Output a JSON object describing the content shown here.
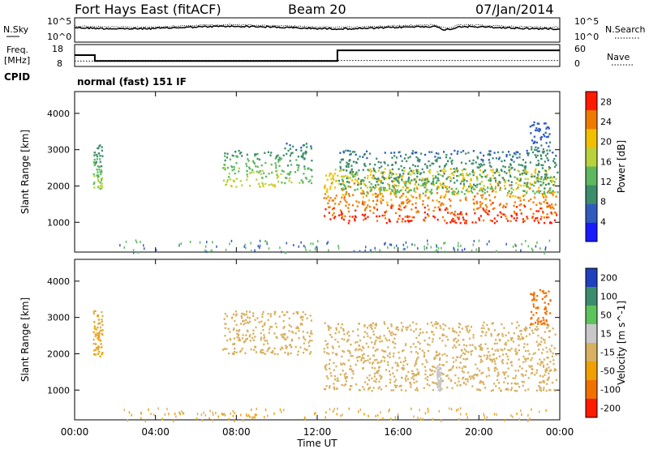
{
  "header": {
    "station": "Fort Hays East (fitACF)",
    "beam": "Beam 20",
    "date": "07/Jan/2014"
  },
  "strips": {
    "nsky_label": "N.Sky",
    "nsearch_label": "N.Search",
    "freq_label_line1": "Freq.",
    "freq_label_line2": "[MHz]",
    "nave_label": "Nave",
    "cpid_label": "CPID",
    "cpid_value": "normal (fast) 151 IF",
    "noise_ticks": [
      "10^5",
      "10^0"
    ],
    "freq_ticks": [
      "18",
      "8"
    ],
    "nave_ticks": [
      "60",
      "0"
    ],
    "freq_mhz": [
      [
        0,
        13.2
      ],
      [
        1.0,
        13.2
      ],
      [
        1.0,
        10.1
      ],
      [
        13.0,
        10.1
      ],
      [
        13.0,
        15.8
      ],
      [
        24,
        15.8
      ]
    ],
    "nave": [
      [
        0,
        12
      ],
      [
        1.0,
        12
      ],
      [
        1.0,
        14
      ],
      [
        24,
        14
      ]
    ]
  },
  "chart_data": [
    {
      "type": "heatmap",
      "title": "Fort Hays East (fitACF) Beam 20 07/Jan/2014",
      "ylabel": "Slant Range [km]",
      "xlabel": "",
      "x_ticks": [
        "00:00",
        "04:00",
        "08:00",
        "12:00",
        "16:00",
        "20:00",
        "00:00"
      ],
      "xlim_hours": [
        0,
        24
      ],
      "y_ticks": [
        1000,
        2000,
        3000,
        4000
      ],
      "ylim_km": [
        180,
        4600
      ],
      "colorbar_label": "Power [dB]",
      "colorbar_ticks": [
        4,
        8,
        12,
        16,
        20,
        24,
        28
      ],
      "colorbar_range": [
        0,
        30
      ],
      "colorbar_colors": [
        "#1a1aff",
        "#2f5bbf",
        "#3d8c6b",
        "#5eb85e",
        "#b8d23c",
        "#f0c000",
        "#f07a00",
        "#ff1a00"
      ],
      "regions": [
        {
          "hours": [
            0.9,
            1.35
          ],
          "range_km": [
            1950,
            3200
          ],
          "db": [
            6,
            18
          ]
        },
        {
          "hours": [
            7.3,
            10.2
          ],
          "range_km": [
            2000,
            3000
          ],
          "db": [
            8,
            20
          ]
        },
        {
          "hours": [
            10.2,
            11.7
          ],
          "range_km": [
            2100,
            3200
          ],
          "db": [
            6,
            16
          ]
        },
        {
          "hours": [
            12.3,
            23.8
          ],
          "range_km": [
            1000,
            2500
          ],
          "db": [
            16,
            30
          ]
        },
        {
          "hours": [
            13.0,
            23.9
          ],
          "range_km": [
            1800,
            3000
          ],
          "db": [
            6,
            14
          ]
        },
        {
          "hours": [
            22.5,
            23.5
          ],
          "range_km": [
            2800,
            3800
          ],
          "db": [
            4,
            10
          ]
        }
      ]
    },
    {
      "type": "heatmap",
      "ylabel": "Slant Range [km]",
      "xlabel": "Time UT",
      "x_ticks": [
        "00:00",
        "04:00",
        "08:00",
        "12:00",
        "16:00",
        "20:00",
        "00:00"
      ],
      "xlim_hours": [
        0,
        24
      ],
      "y_ticks": [
        1000,
        2000,
        3000,
        4000
      ],
      "ylim_km": [
        180,
        4600
      ],
      "colorbar_label": "Velocity [m s^-1]",
      "colorbar_ticks": [
        "200",
        "100",
        "50",
        "15",
        "-15",
        "-50",
        "-100",
        "-200"
      ],
      "colorbar_colors": [
        "#1f3fbf",
        "#3b8c6e",
        "#5cc45c",
        "#c8c8c8",
        "#d7b060",
        "#f0a000",
        "#f07000",
        "#ff1a00"
      ],
      "regions": [
        {
          "hours": [
            0.9,
            1.35
          ],
          "range_km": [
            1950,
            3200
          ],
          "velocity_ms": [
            -50,
            15
          ]
        },
        {
          "hours": [
            7.3,
            11.7
          ],
          "range_km": [
            2000,
            3200
          ],
          "velocity_ms": [
            -15,
            15
          ]
        },
        {
          "hours": [
            12.3,
            23.8
          ],
          "range_km": [
            1000,
            2900
          ],
          "velocity_ms": [
            -15,
            15
          ]
        },
        {
          "hours": [
            17.9,
            18.1
          ],
          "range_km": [
            1000,
            1700
          ],
          "velocity_ms": [
            15,
            50
          ]
        },
        {
          "hours": [
            22.5,
            23.5
          ],
          "range_km": [
            2800,
            3800
          ],
          "velocity_ms": [
            -100,
            -50
          ]
        }
      ]
    }
  ]
}
